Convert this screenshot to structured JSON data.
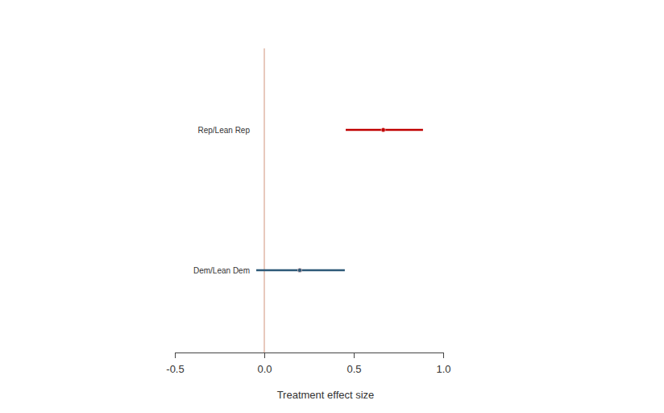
{
  "chart_data": {
    "type": "forest",
    "orientation": "horizontal",
    "xlabel": "Treatment effect size",
    "categories": [
      "Rep/Lean Rep",
      "Dem/Lean Dem"
    ],
    "values": [
      0.665,
      0.198
    ],
    "lower": [
      0.455,
      -0.045
    ],
    "upper": [
      0.887,
      0.45
    ],
    "colors": [
      "#c00000",
      "#2e5a78"
    ],
    "reference_line": 0,
    "xlim": [
      -0.5,
      1.0
    ],
    "xticks": [
      -0.5,
      {
        "value": 0,
        "label": "0.0"
      },
      0.5,
      {
        "value": 1,
        "label": "1.0"
      }
    ],
    "grid": false
  }
}
